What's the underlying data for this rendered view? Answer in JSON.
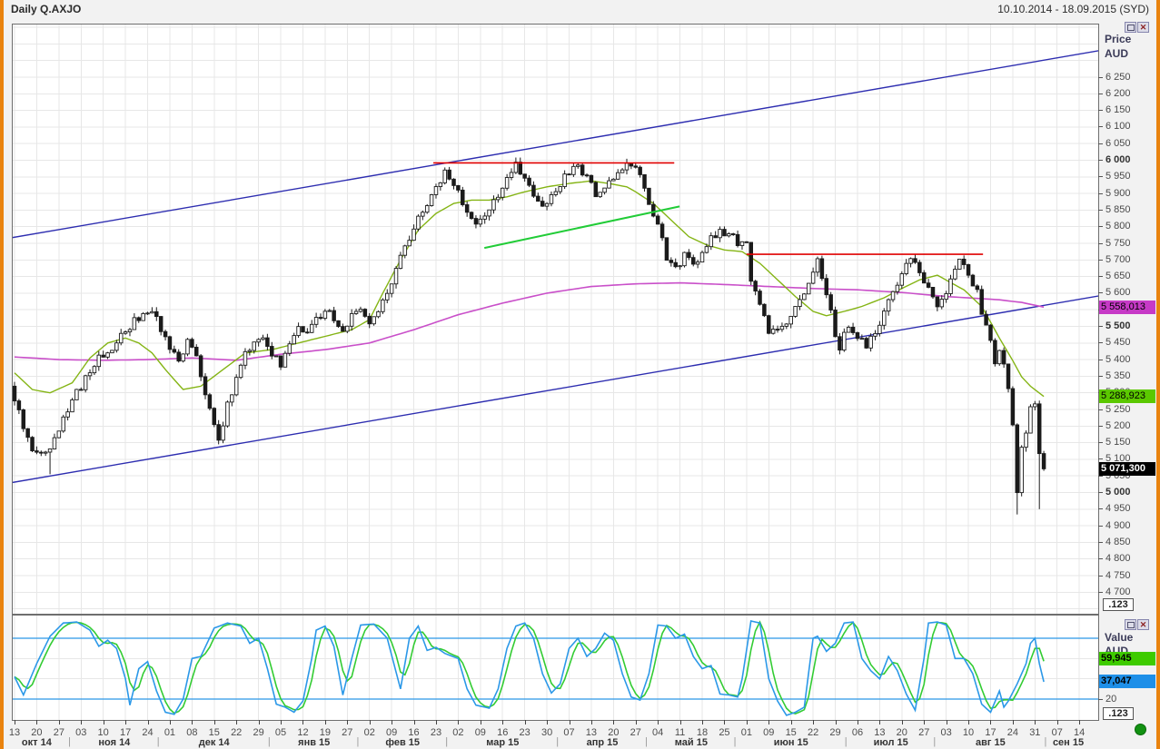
{
  "header": {
    "title": "Daily Q.AXJO",
    "date_range": "10.10.2014 - 18.09.2015 (SYD)"
  },
  "price_axis": {
    "title_line1": "Price",
    "title_line2": "AUD",
    "tick_labels": [
      "6 250",
      "6 200",
      "6 150",
      "6 100",
      "6 050",
      "6 000",
      "5 950",
      "5 900",
      "5 850",
      "5 800",
      "5 750",
      "5 700",
      "5 650",
      "5 600",
      "5 550",
      "5 500",
      "5 450",
      "5 400",
      "5 350",
      "5 300",
      "5 250",
      "5 200",
      "5 150",
      "5 100",
      "5 050",
      "5 000",
      "4 950",
      "4 900",
      "4 850",
      "4 800",
      "4 750",
      "4 700"
    ],
    "bold_labels": [
      "6 000",
      "5 500",
      "5 000"
    ],
    "decimal_badge": ".123",
    "badges": [
      {
        "text": "5 558,013",
        "value": 5558.013,
        "bg": "#c63ac6",
        "fg": "#000",
        "bold": false
      },
      {
        "text": "5 288,923",
        "value": 5288.923,
        "bg": "#5bc800",
        "fg": "#000",
        "bold": false
      },
      {
        "text": "5 071,300",
        "value": 5071.3,
        "bg": "#000000",
        "fg": "#fff",
        "bold": true
      }
    ]
  },
  "value_axis": {
    "title_line1": "Value",
    "title_line2": "AUD",
    "tick_label_20": "20",
    "decimal_badge": ".123",
    "badges": [
      {
        "text": "59,945",
        "value": 59.945,
        "bg": "#3ecb00",
        "fg": "#000",
        "bold": true
      },
      {
        "text": "37,047",
        "value": 37.047,
        "bg": "#1e8fe8",
        "fg": "#000",
        "bold": true
      }
    ]
  },
  "x_axis": {
    "months": [
      {
        "label": "окт 14",
        "days": [
          "13",
          "20",
          "27"
        ]
      },
      {
        "label": "ноя 14",
        "days": [
          "03",
          "10",
          "17",
          "24"
        ]
      },
      {
        "label": "дек 14",
        "days": [
          "01",
          "08",
          "15",
          "22",
          "29"
        ]
      },
      {
        "label": "янв 15",
        "days": [
          "05",
          "12",
          "19",
          "27"
        ]
      },
      {
        "label": "фев 15",
        "days": [
          "02",
          "09",
          "16",
          "23"
        ]
      },
      {
        "label": "мар 15",
        "days": [
          "02",
          "09",
          "16",
          "23",
          "30"
        ]
      },
      {
        "label": "апр 15",
        "days": [
          "07",
          "13",
          "20",
          "27"
        ]
      },
      {
        "label": "май 15",
        "days": [
          "04",
          "11",
          "18",
          "25"
        ]
      },
      {
        "label": "июн 15",
        "days": [
          "01",
          "09",
          "15",
          "22",
          "29"
        ]
      },
      {
        "label": "июл 15",
        "days": [
          "06",
          "13",
          "20",
          "27"
        ]
      },
      {
        "label": "авг 15",
        "days": [
          "03",
          "10",
          "17",
          "24",
          "31"
        ]
      },
      {
        "label": "сен 15",
        "days": [
          "07",
          "14"
        ]
      }
    ],
    "separator": "|"
  },
  "chart_data": {
    "type": "candlestick",
    "instrument": "Q.AXJO",
    "interval": "Daily",
    "price_axis_range": [
      4700,
      6250
    ],
    "price_axis_step": 50,
    "num_days": 233,
    "last_close": 5071.3,
    "colors": {
      "candle": "#1a1a1a",
      "up_fill": "#ffffff",
      "down_fill": "#1a1a1a",
      "ma_fast": "#84b414",
      "ma_slow": "#c94fc9",
      "channel": "#2d2db0",
      "resistance": "#e00000",
      "trend_green": "#21cc37",
      "stoch_k": "#2b98e8",
      "stoch_d": "#33cc33",
      "band": "#2b98e8",
      "grid": "#e7e7e7"
    },
    "close_anchors": [
      [
        0,
        5285
      ],
      [
        2,
        5190
      ],
      [
        4,
        5135
      ],
      [
        8,
        5125
      ],
      [
        11,
        5215
      ],
      [
        14,
        5300
      ],
      [
        17,
        5365
      ],
      [
        20,
        5420
      ],
      [
        23,
        5450
      ],
      [
        26,
        5500
      ],
      [
        29,
        5540
      ],
      [
        31,
        5545
      ],
      [
        33,
        5495
      ],
      [
        35,
        5420
      ],
      [
        37,
        5400
      ],
      [
        39,
        5450
      ],
      [
        41,
        5400
      ],
      [
        43,
        5290
      ],
      [
        45,
        5210
      ],
      [
        46,
        5160
      ],
      [
        48,
        5260
      ],
      [
        50,
        5340
      ],
      [
        52,
        5415
      ],
      [
        54,
        5455
      ],
      [
        56,
        5470
      ],
      [
        58,
        5420
      ],
      [
        60,
        5390
      ],
      [
        62,
        5460
      ],
      [
        64,
        5500
      ],
      [
        66,
        5480
      ],
      [
        68,
        5520
      ],
      [
        70,
        5550
      ],
      [
        72,
        5520
      ],
      [
        74,
        5480
      ],
      [
        76,
        5530
      ],
      [
        78,
        5560
      ],
      [
        80,
        5500
      ],
      [
        82,
        5540
      ],
      [
        84,
        5600
      ],
      [
        86,
        5680
      ],
      [
        88,
        5740
      ],
      [
        90,
        5800
      ],
      [
        92,
        5840
      ],
      [
        94,
        5890
      ],
      [
        96,
        5940
      ],
      [
        97,
        5960
      ],
      [
        99,
        5935
      ],
      [
        101,
        5870
      ],
      [
        103,
        5830
      ],
      [
        105,
        5810
      ],
      [
        107,
        5850
      ],
      [
        109,
        5900
      ],
      [
        111,
        5950
      ],
      [
        113,
        5985
      ],
      [
        115,
        5940
      ],
      [
        117,
        5890
      ],
      [
        119,
        5870
      ],
      [
        121,
        5890
      ],
      [
        123,
        5930
      ],
      [
        125,
        5965
      ],
      [
        127,
        5985
      ],
      [
        129,
        5950
      ],
      [
        131,
        5900
      ],
      [
        133,
        5920
      ],
      [
        135,
        5950
      ],
      [
        137,
        5975
      ],
      [
        139,
        5985
      ],
      [
        141,
        5950
      ],
      [
        143,
        5870
      ],
      [
        145,
        5800
      ],
      [
        147,
        5710
      ],
      [
        149,
        5670
      ],
      [
        151,
        5710
      ],
      [
        153,
        5680
      ],
      [
        155,
        5720
      ],
      [
        157,
        5760
      ],
      [
        159,
        5785
      ],
      [
        161,
        5775
      ],
      [
        163,
        5755
      ],
      [
        165,
        5740
      ],
      [
        166,
        5640
      ],
      [
        168,
        5560
      ],
      [
        170,
        5480
      ],
      [
        172,
        5500
      ],
      [
        174,
        5520
      ],
      [
        176,
        5550
      ],
      [
        178,
        5600
      ],
      [
        180,
        5660
      ],
      [
        181,
        5695
      ],
      [
        183,
        5600
      ],
      [
        185,
        5480
      ],
      [
        186,
        5440
      ],
      [
        188,
        5505
      ],
      [
        190,
        5475
      ],
      [
        192,
        5440
      ],
      [
        194,
        5480
      ],
      [
        196,
        5540
      ],
      [
        198,
        5605
      ],
      [
        200,
        5665
      ],
      [
        202,
        5700
      ],
      [
        204,
        5670
      ],
      [
        206,
        5615
      ],
      [
        208,
        5565
      ],
      [
        210,
        5610
      ],
      [
        212,
        5680
      ],
      [
        213,
        5695
      ],
      [
        215,
        5665
      ],
      [
        217,
        5600
      ],
      [
        219,
        5495
      ],
      [
        220,
        5460
      ],
      [
        221,
        5400
      ],
      [
        222,
        5420
      ],
      [
        223,
        5385
      ],
      [
        224,
        5310
      ],
      [
        225,
        5205
      ],
      [
        226,
        5001
      ],
      [
        227,
        5140
      ],
      [
        228,
        5180
      ],
      [
        229,
        5255
      ],
      [
        230,
        5270
      ],
      [
        231,
        5120
      ],
      [
        232,
        5071.3
      ]
    ],
    "low_overrides": {
      "8": 5055,
      "226": 4934,
      "231": 4950
    },
    "ma_fast_anchors": [
      [
        0,
        5360
      ],
      [
        4,
        5310
      ],
      [
        8,
        5300
      ],
      [
        13,
        5330
      ],
      [
        17,
        5405
      ],
      [
        21,
        5450
      ],
      [
        25,
        5465
      ],
      [
        28,
        5450
      ],
      [
        31,
        5420
      ],
      [
        34,
        5370
      ],
      [
        38,
        5310
      ],
      [
        42,
        5320
      ],
      [
        46,
        5360
      ],
      [
        52,
        5420
      ],
      [
        58,
        5430
      ],
      [
        64,
        5450
      ],
      [
        70,
        5470
      ],
      [
        76,
        5490
      ],
      [
        80,
        5520
      ],
      [
        83,
        5600
      ],
      [
        87,
        5700
      ],
      [
        91,
        5790
      ],
      [
        95,
        5840
      ],
      [
        99,
        5870
      ],
      [
        103,
        5880
      ],
      [
        107,
        5880
      ],
      [
        111,
        5890
      ],
      [
        115,
        5905
      ],
      [
        120,
        5920
      ],
      [
        125,
        5930
      ],
      [
        130,
        5938
      ],
      [
        134,
        5930
      ],
      [
        138,
        5920
      ],
      [
        140,
        5905
      ],
      [
        144,
        5870
      ],
      [
        148,
        5820
      ],
      [
        152,
        5770
      ],
      [
        156,
        5745
      ],
      [
        160,
        5730
      ],
      [
        164,
        5725
      ],
      [
        168,
        5690
      ],
      [
        172,
        5640
      ],
      [
        176,
        5590
      ],
      [
        180,
        5545
      ],
      [
        183,
        5532
      ],
      [
        187,
        5545
      ],
      [
        191,
        5560
      ],
      [
        196,
        5586
      ],
      [
        200,
        5614
      ],
      [
        204,
        5640
      ],
      [
        208,
        5654
      ],
      [
        211,
        5632
      ],
      [
        214,
        5610
      ],
      [
        218,
        5560
      ],
      [
        222,
        5465
      ],
      [
        225,
        5397
      ],
      [
        227,
        5348
      ],
      [
        229,
        5320
      ],
      [
        232,
        5289
      ]
    ],
    "ma_fast_last": 5288.923,
    "ma_slow_anchors": [
      [
        0,
        5408
      ],
      [
        10,
        5400
      ],
      [
        20,
        5398
      ],
      [
        30,
        5400
      ],
      [
        40,
        5405
      ],
      [
        50,
        5398
      ],
      [
        60,
        5416
      ],
      [
        70,
        5430
      ],
      [
        80,
        5450
      ],
      [
        90,
        5490
      ],
      [
        100,
        5535
      ],
      [
        110,
        5570
      ],
      [
        120,
        5600
      ],
      [
        130,
        5620
      ],
      [
        140,
        5628
      ],
      [
        150,
        5631
      ],
      [
        160,
        5626
      ],
      [
        170,
        5620
      ],
      [
        180,
        5614
      ],
      [
        190,
        5610
      ],
      [
        200,
        5602
      ],
      [
        210,
        5590
      ],
      [
        216,
        5585
      ],
      [
        222,
        5580
      ],
      [
        227,
        5572
      ],
      [
        232,
        5558
      ]
    ],
    "ma_slow_last": 5558.013,
    "channel_lines": [
      {
        "d1": -1,
        "p1": 5766,
        "d2": 245,
        "p2": 6331
      },
      {
        "d1": -1,
        "p1": 5029,
        "d2": 245,
        "p2": 5593
      }
    ],
    "resistance_lines": [
      {
        "price": 5992,
        "from_day": 94.4,
        "to_day": 148.7
      },
      {
        "price": 5717,
        "from_day": 165.0,
        "to_day": 218.3
      }
    ],
    "green_trend_line": {
      "d1": 105.9,
      "p1": 5736,
      "d2": 149.9,
      "p2": 5861
    },
    "stochastic": {
      "upper_band": 80,
      "lower_band": 20,
      "k_last": 37.047,
      "d_last": 59.945,
      "k_anchors": [
        [
          0,
          42
        ],
        [
          2,
          24
        ],
        [
          5,
          55
        ],
        [
          8,
          82
        ],
        [
          11,
          95
        ],
        [
          14,
          96
        ],
        [
          17,
          88
        ],
        [
          19,
          72
        ],
        [
          21,
          78
        ],
        [
          23,
          70
        ],
        [
          25,
          40
        ],
        [
          26,
          14
        ],
        [
          28,
          50
        ],
        [
          30,
          57
        ],
        [
          32,
          28
        ],
        [
          34,
          7
        ],
        [
          36,
          5
        ],
        [
          38,
          20
        ],
        [
          40,
          60
        ],
        [
          42,
          62
        ],
        [
          45,
          90
        ],
        [
          48,
          95
        ],
        [
          51,
          92
        ],
        [
          53,
          75
        ],
        [
          55,
          80
        ],
        [
          57,
          50
        ],
        [
          59,
          15
        ],
        [
          61,
          12
        ],
        [
          63,
          7
        ],
        [
          65,
          18
        ],
        [
          67,
          60
        ],
        [
          68,
          88
        ],
        [
          70,
          92
        ],
        [
          72,
          72
        ],
        [
          74,
          24
        ],
        [
          76,
          60
        ],
        [
          78,
          93
        ],
        [
          81,
          94
        ],
        [
          84,
          80
        ],
        [
          87,
          30
        ],
        [
          89,
          80
        ],
        [
          91,
          92
        ],
        [
          93,
          68
        ],
        [
          95,
          71
        ],
        [
          97,
          65
        ],
        [
          100,
          60
        ],
        [
          102,
          30
        ],
        [
          104,
          14
        ],
        [
          107,
          11
        ],
        [
          109,
          30
        ],
        [
          111,
          70
        ],
        [
          113,
          92
        ],
        [
          115,
          95
        ],
        [
          117,
          80
        ],
        [
          119,
          45
        ],
        [
          121,
          26
        ],
        [
          123,
          35
        ],
        [
          125,
          70
        ],
        [
          127,
          80
        ],
        [
          129,
          62
        ],
        [
          131,
          70
        ],
        [
          133,
          85
        ],
        [
          135,
          78
        ],
        [
          137,
          45
        ],
        [
          139,
          22
        ],
        [
          141,
          19
        ],
        [
          143,
          45
        ],
        [
          145,
          93
        ],
        [
          147,
          92
        ],
        [
          149,
          80
        ],
        [
          151,
          84
        ],
        [
          153,
          62
        ],
        [
          155,
          50
        ],
        [
          157,
          53
        ],
        [
          159,
          25
        ],
        [
          161,
          24
        ],
        [
          163,
          22
        ],
        [
          164,
          40
        ],
        [
          166,
          97
        ],
        [
          168,
          95
        ],
        [
          170,
          40
        ],
        [
          172,
          18
        ],
        [
          174,
          4
        ],
        [
          176,
          7
        ],
        [
          178,
          12
        ],
        [
          180,
          80
        ],
        [
          181,
          82
        ],
        [
          183,
          67
        ],
        [
          185,
          75
        ],
        [
          187,
          95
        ],
        [
          189,
          96
        ],
        [
          191,
          60
        ],
        [
          193,
          48
        ],
        [
          195,
          40
        ],
        [
          197,
          62
        ],
        [
          199,
          48
        ],
        [
          201,
          25
        ],
        [
          203,
          9
        ],
        [
          205,
          60
        ],
        [
          206,
          95
        ],
        [
          208,
          96
        ],
        [
          210,
          93
        ],
        [
          212,
          60
        ],
        [
          214,
          60
        ],
        [
          216,
          45
        ],
        [
          218,
          15
        ],
        [
          220,
          7
        ],
        [
          222,
          28
        ],
        [
          223,
          12
        ],
        [
          224,
          18
        ],
        [
          226,
          35
        ],
        [
          228,
          55
        ],
        [
          229,
          75
        ],
        [
          230,
          80
        ],
        [
          231,
          55
        ],
        [
          232,
          37
        ]
      ]
    }
  }
}
